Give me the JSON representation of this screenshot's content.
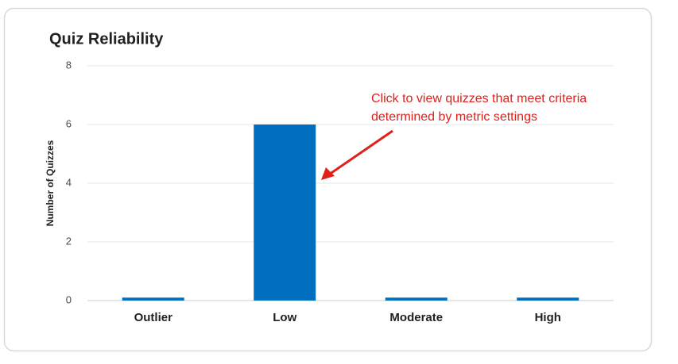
{
  "chart_data": {
    "type": "bar",
    "title": "Quiz Reliability",
    "y_label": "Number of Quizzes",
    "categories": [
      "Outlier",
      "Low",
      "Moderate",
      "High"
    ],
    "values": [
      0.1,
      6,
      0.1,
      0.1
    ],
    "color": "#006fbf",
    "ylim": [
      0,
      8
    ],
    "yticks": [
      0,
      2,
      4,
      6,
      8
    ],
    "grid": true,
    "annotation": [
      "Click to view quizzes that meet criteria",
      "determined by metric settings"
    ],
    "annotation_color": "#e0201b"
  }
}
